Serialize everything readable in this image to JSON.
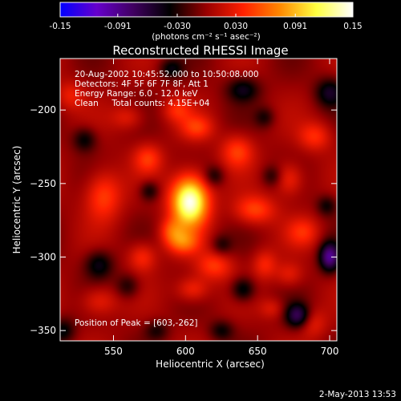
{
  "chart_data": {
    "type": "heatmap",
    "title": "Reconstructed RHESSI Image",
    "xlabel": "Heliocentric X (arcsec)",
    "ylabel": "Heliocentric Y (arcsec)",
    "xlim": [
      513,
      705
    ],
    "ylim": [
      -357,
      -165
    ],
    "x_ticks": [
      550,
      600,
      650,
      700
    ],
    "y_ticks": [
      -350,
      -300,
      -250,
      -200
    ],
    "colorbar": {
      "range": [
        -0.15,
        0.15
      ],
      "ticks": [
        "-0.15",
        "-0.091",
        "-0.030",
        "0.030",
        "0.091",
        "0.15"
      ],
      "units": "(photons cm⁻² s⁻¹ asec⁻²)",
      "colormap": [
        "#0000ff",
        "#6600cc",
        "#400060",
        "#000000",
        "#990000",
        "#ff2000",
        "#ff8800",
        "#ffff40",
        "#ffffff"
      ]
    },
    "annotations": [
      "20-Aug-2002 10:45:52.000 to 10:50:08.000",
      "Detectors: 4F 5F 6F 7F 8F, Att 1",
      "Energy Range: 6.0 - 12.0 keV",
      "Clean     Total counts: 4.15E+04"
    ],
    "peak_label": "Position of Peak = [603,-262]",
    "peak": {
      "x": 603,
      "y": -262,
      "value": 0.15
    },
    "sources": [
      {
        "x": 603,
        "y": -262,
        "sx": 9,
        "sy": 12,
        "value": 0.15
      },
      {
        "x": 598,
        "y": -290,
        "sx": 8,
        "sy": 6,
        "value": 0.055
      },
      {
        "x": 590,
        "y": -282,
        "sx": 6,
        "sy": 6,
        "value": 0.04
      },
      {
        "x": 648,
        "y": -268,
        "sx": 10,
        "sy": 7,
        "value": 0.05
      },
      {
        "x": 636,
        "y": -228,
        "sx": 8,
        "sy": 8,
        "value": 0.045
      },
      {
        "x": 608,
        "y": -212,
        "sx": 8,
        "sy": 6,
        "value": 0.04
      },
      {
        "x": 594,
        "y": -200,
        "sx": 7,
        "sy": 6,
        "value": 0.035
      },
      {
        "x": 574,
        "y": -233,
        "sx": 7,
        "sy": 7,
        "value": 0.04
      },
      {
        "x": 560,
        "y": -205,
        "sx": 8,
        "sy": 6,
        "value": 0.03
      },
      {
        "x": 543,
        "y": -258,
        "sx": 9,
        "sy": 12,
        "value": 0.05
      },
      {
        "x": 570,
        "y": -300,
        "sx": 7,
        "sy": 7,
        "value": 0.04
      },
      {
        "x": 620,
        "y": -306,
        "sx": 9,
        "sy": 7,
        "value": 0.045
      },
      {
        "x": 605,
        "y": -322,
        "sx": 8,
        "sy": 6,
        "value": 0.04
      },
      {
        "x": 672,
        "y": -247,
        "sx": 7,
        "sy": 8,
        "value": 0.04
      },
      {
        "x": 690,
        "y": -218,
        "sx": 8,
        "sy": 7,
        "value": 0.04
      },
      {
        "x": 682,
        "y": -283,
        "sx": 8,
        "sy": 7,
        "value": 0.035
      },
      {
        "x": 672,
        "y": -312,
        "sx": 7,
        "sy": 6,
        "value": 0.03
      },
      {
        "x": 655,
        "y": -305,
        "sx": 6,
        "sy": 7,
        "value": 0.035
      },
      {
        "x": 540,
        "y": -330,
        "sx": 9,
        "sy": 7,
        "value": 0.035
      },
      {
        "x": 520,
        "y": -190,
        "sx": 7,
        "sy": 7,
        "value": 0.03
      },
      {
        "x": 688,
        "y": -345,
        "sx": 7,
        "sy": 7,
        "value": 0.03
      },
      {
        "x": 660,
        "y": -335,
        "sx": 6,
        "sy": 5,
        "value": 0.025
      },
      {
        "x": 575,
        "y": -255,
        "sx": 5,
        "sy": 5,
        "value": -0.04
      },
      {
        "x": 620,
        "y": -245,
        "sx": 5,
        "sy": 5,
        "value": -0.035
      },
      {
        "x": 660,
        "y": -245,
        "sx": 5,
        "sy": 5,
        "value": -0.03
      },
      {
        "x": 640,
        "y": -186,
        "sx": 8,
        "sy": 6,
        "value": -0.045
      },
      {
        "x": 655,
        "y": -205,
        "sx": 5,
        "sy": 5,
        "value": -0.03
      },
      {
        "x": 530,
        "y": -220,
        "sx": 6,
        "sy": 6,
        "value": -0.04
      },
      {
        "x": 540,
        "y": -305,
        "sx": 7,
        "sy": 7,
        "value": -0.045
      },
      {
        "x": 560,
        "y": -320,
        "sx": 6,
        "sy": 6,
        "value": -0.035
      },
      {
        "x": 640,
        "y": -322,
        "sx": 6,
        "sy": 6,
        "value": -0.05
      },
      {
        "x": 625,
        "y": -292,
        "sx": 5,
        "sy": 5,
        "value": -0.03
      },
      {
        "x": 700,
        "y": -300,
        "sx": 5,
        "sy": 7,
        "value": -0.09
      },
      {
        "x": 678,
        "y": -340,
        "sx": 6,
        "sy": 6,
        "value": -0.07
      },
      {
        "x": 698,
        "y": -265,
        "sx": 5,
        "sy": 5,
        "value": -0.035
      },
      {
        "x": 700,
        "y": -188,
        "sx": 7,
        "sy": 7,
        "value": -0.05
      },
      {
        "x": 590,
        "y": -172,
        "sx": 6,
        "sy": 5,
        "value": -0.04
      },
      {
        "x": 515,
        "y": -350,
        "sx": 6,
        "sy": 6,
        "value": -0.04
      },
      {
        "x": 580,
        "y": -350,
        "sx": 6,
        "sy": 5,
        "value": -0.03
      },
      {
        "x": 625,
        "y": -350,
        "sx": 6,
        "sy": 5,
        "value": -0.035
      }
    ]
  },
  "timestamp": "2-May-2013 13:53"
}
